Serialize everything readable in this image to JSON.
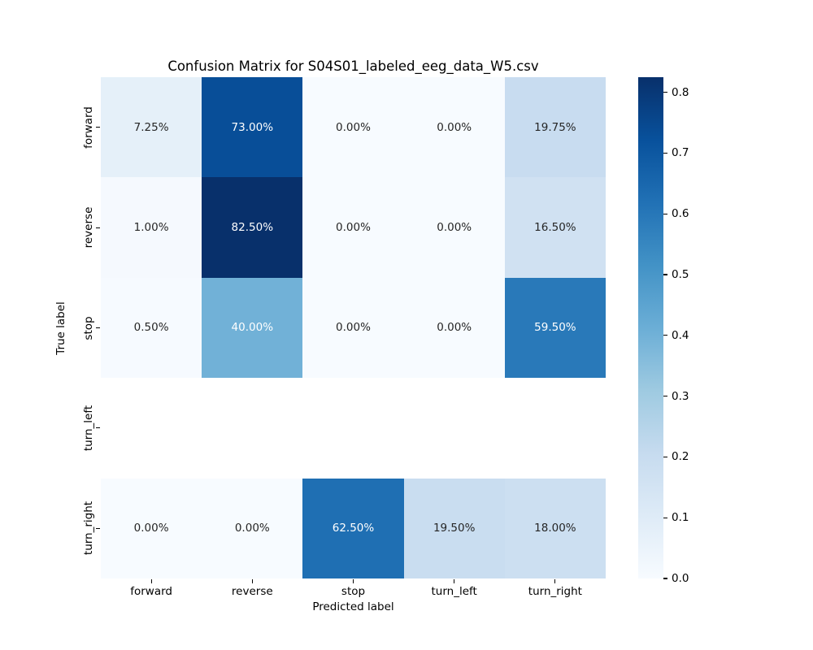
{
  "chart_data": {
    "type": "heatmap",
    "title": "Confusion Matrix for S04S01_labeled_eeg_data_W5.csv",
    "xlabel": "Predicted label",
    "ylabel": "True label",
    "x_categories": [
      "forward",
      "reverse",
      "stop",
      "turn_left",
      "turn_right"
    ],
    "y_categories": [
      "forward",
      "reverse",
      "stop",
      "turn_left",
      "turn_right"
    ],
    "values_percent": [
      [
        7.25,
        73.0,
        0.0,
        0.0,
        19.75
      ],
      [
        1.0,
        82.5,
        0.0,
        0.0,
        16.5
      ],
      [
        0.5,
        40.0,
        0.0,
        0.0,
        59.5
      ],
      [
        null,
        null,
        null,
        null,
        null
      ],
      [
        0.0,
        0.0,
        62.5,
        19.5,
        18.0
      ]
    ],
    "cell_labels": [
      [
        "7.25%",
        "73.00%",
        "0.00%",
        "0.00%",
        "19.75%"
      ],
      [
        "1.00%",
        "82.50%",
        "0.00%",
        "0.00%",
        "16.50%"
      ],
      [
        "0.50%",
        "40.00%",
        "0.00%",
        "0.00%",
        "59.50%"
      ],
      [
        "",
        "",
        "",
        "",
        ""
      ],
      [
        "0.00%",
        "0.00%",
        "62.50%",
        "19.50%",
        "18.00%"
      ]
    ],
    "colormap": "Blues",
    "vmin": 0.0,
    "vmax": 0.825,
    "grid": false,
    "legend_position": "colorbar-right",
    "colorbar_ticks": [
      0.0,
      0.1,
      0.2,
      0.3,
      0.4,
      0.5,
      0.6,
      0.7,
      0.8
    ],
    "colorbar_tick_labels": [
      "0.0",
      "0.1",
      "0.2",
      "0.3",
      "0.4",
      "0.5",
      "0.6",
      "0.7",
      "0.8"
    ]
  },
  "colors": {
    "background": "#ffffff",
    "empty_cell": "#ffffff",
    "dark_text": "#262626",
    "light_text": "#ffffff",
    "axis_text": "#000000",
    "blues_anchors": [
      "#f7fbff",
      "#deebf7",
      "#c6dbef",
      "#9ecae1",
      "#6baed6",
      "#4292c6",
      "#2171b5",
      "#08519c",
      "#08306b"
    ]
  }
}
